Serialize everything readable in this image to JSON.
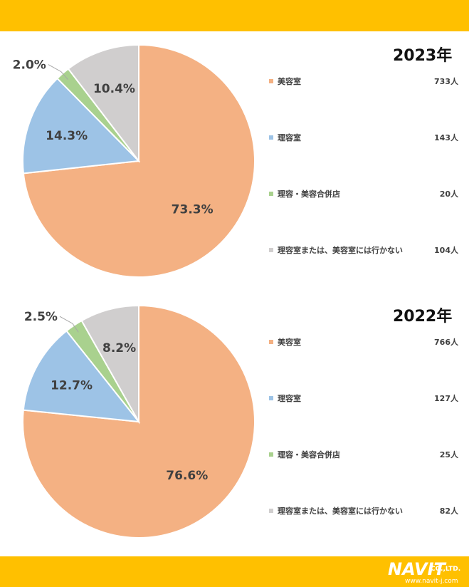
{
  "chart_data": [
    {
      "type": "pie",
      "title": "2023年",
      "categories": [
        "美容室",
        "理容室",
        "理容・美容合併店",
        "理容室または、美容室には行かない"
      ],
      "counts_text": [
        "733人",
        "143人",
        "20人",
        "104人"
      ],
      "values": [
        73.3,
        14.3,
        2.0,
        10.4
      ],
      "data_labels": [
        "73.3%",
        "14.3%",
        "2.0%",
        "10.4%"
      ],
      "colors": [
        "#f4b183",
        "#9dc3e6",
        "#a9d18e",
        "#d0cece"
      ],
      "legend": "right"
    },
    {
      "type": "pie",
      "title": "2022年",
      "categories": [
        "美容室",
        "理容室",
        "理容・美容合併店",
        "理容室または、美容室には行かない"
      ],
      "counts_text": [
        "766人",
        "127人",
        "25人",
        "82人"
      ],
      "values": [
        76.6,
        12.7,
        2.5,
        8.2
      ],
      "data_labels": [
        "76.6%",
        "12.7%",
        "2.5%",
        "8.2%"
      ],
      "colors": [
        "#f4b183",
        "#9dc3e6",
        "#a9d18e",
        "#d0cece"
      ],
      "legend": "right"
    }
  ],
  "brand": {
    "logo_text": "NAVIT",
    "company_suffix": "CO.,LTD.",
    "url": "www.navit-j.com",
    "band_color": "#ffc000"
  }
}
